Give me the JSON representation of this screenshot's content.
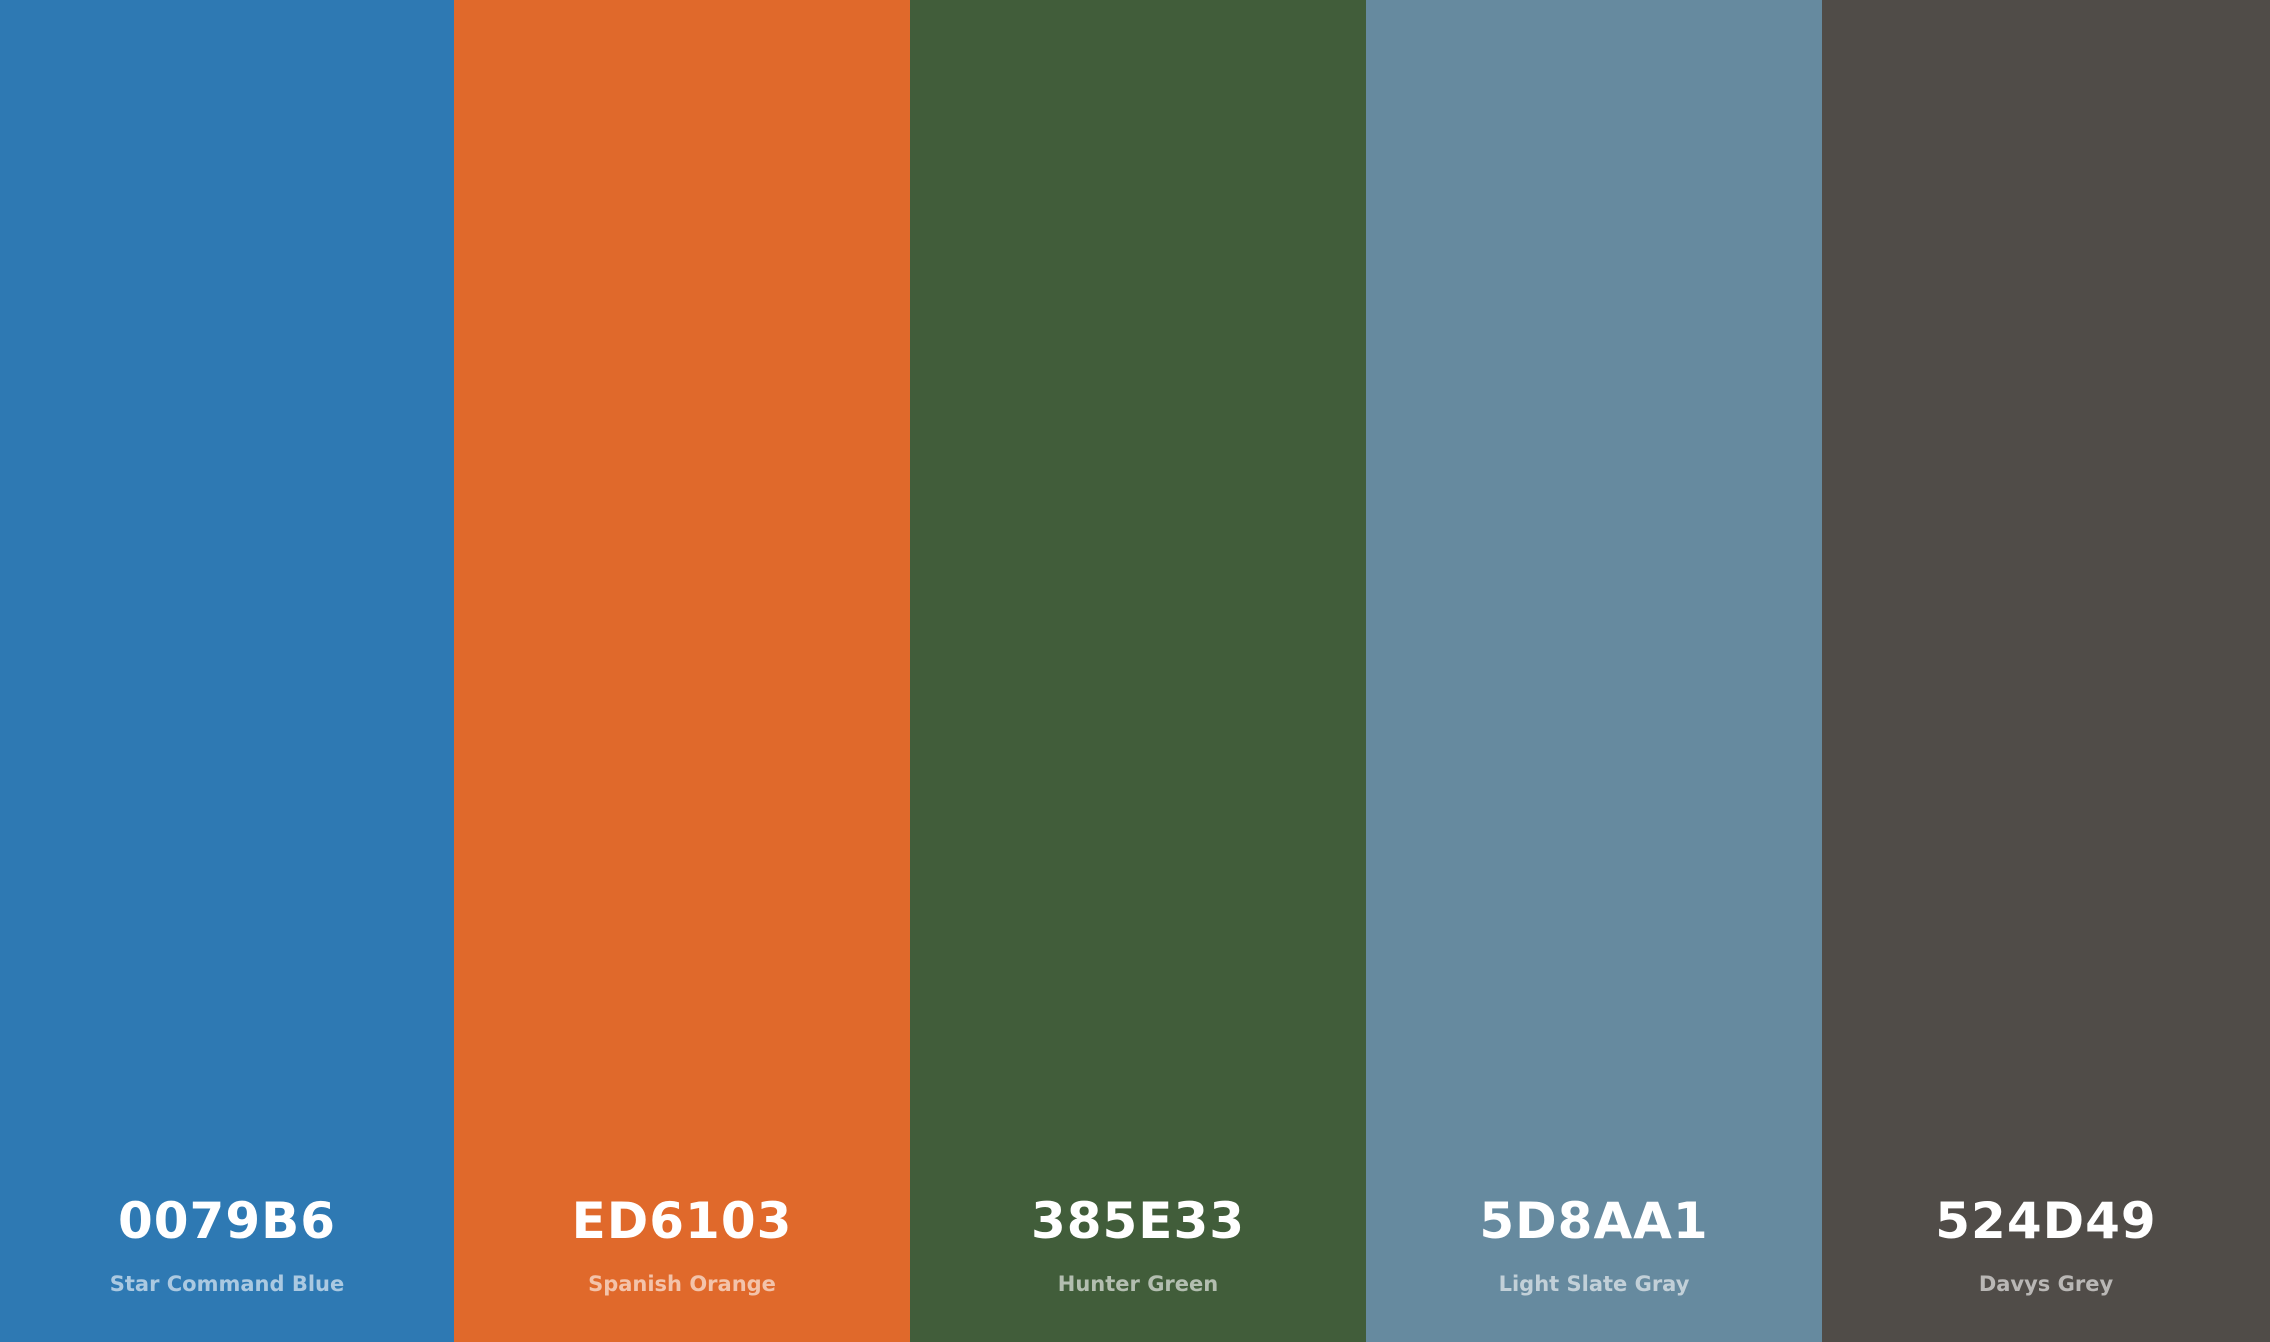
{
  "swatches": [
    {
      "hex": "0079B6",
      "name": "Star Command Blue",
      "color": "#2E79B3"
    },
    {
      "hex": "ED6103",
      "name": "Spanish Orange",
      "color": "#E0692B"
    },
    {
      "hex": "385E33",
      "name": "Hunter Green",
      "color": "#415D3A"
    },
    {
      "hex": "5D8AA1",
      "name": "Light Slate Gray",
      "color": "#668A9F"
    },
    {
      "hex": "524D49",
      "name": "Davys Grey",
      "color": "#504C48"
    }
  ]
}
